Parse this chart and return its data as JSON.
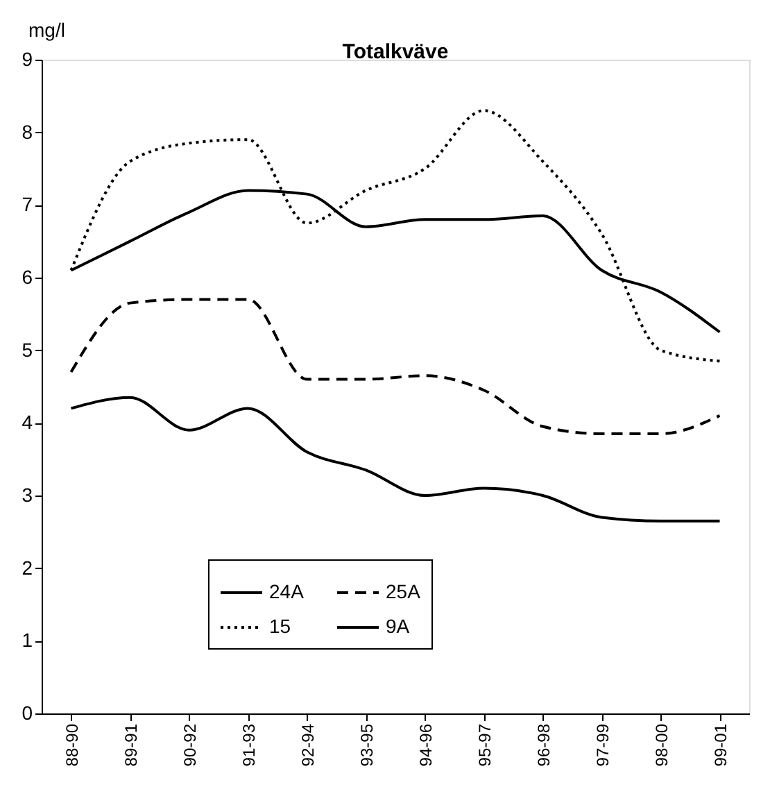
{
  "chart_data": {
    "type": "line",
    "title": "Totalkväve",
    "ylabel": "mg/l",
    "categories": [
      "88-90",
      "89-91",
      "90-92",
      "91-93",
      "92-94",
      "93-95",
      "94-96",
      "95-97",
      "96-98",
      "97-99",
      "98-00",
      "99-01"
    ],
    "series": [
      {
        "name": "24A",
        "color": "#000000",
        "line_style": "solid",
        "values": [
          4.2,
          4.35,
          3.9,
          4.2,
          3.6,
          3.35,
          3.0,
          3.1,
          3.0,
          2.7,
          2.65,
          2.65
        ]
      },
      {
        "name": "25A",
        "color": "#000000",
        "line_style": "dashed",
        "values": [
          4.7,
          5.65,
          5.7,
          5.7,
          4.6,
          4.6,
          4.65,
          4.45,
          3.95,
          3.85,
          3.85,
          4.1
        ]
      },
      {
        "name": "15",
        "color": "#000000",
        "line_style": "dotted",
        "values": [
          6.1,
          7.6,
          7.85,
          7.9,
          6.75,
          7.2,
          7.5,
          8.3,
          7.6,
          6.6,
          5.0,
          4.85
        ]
      },
      {
        "name": "9A",
        "color": "#000000",
        "line_style": "solid",
        "values": [
          6.1,
          6.5,
          6.9,
          7.2,
          7.15,
          6.7,
          6.8,
          6.8,
          6.85,
          6.1,
          5.8,
          5.25
        ]
      }
    ],
    "ylim": [
      0,
      9
    ],
    "yticks": [
      0,
      1,
      2,
      3,
      4,
      5,
      6,
      7,
      8,
      9
    ],
    "grid": false,
    "legend": "bottom",
    "marker": "none"
  }
}
